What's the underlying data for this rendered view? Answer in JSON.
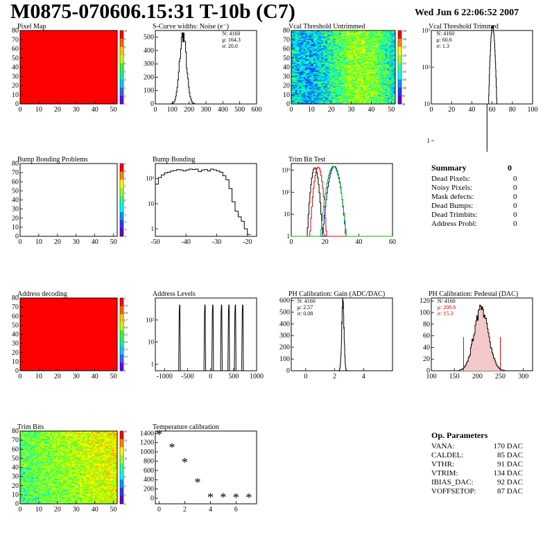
{
  "header": {
    "title": "M0875-070606.15:31 T-10b (C7)",
    "date": "Wed Jun  6 22:06:52 2007"
  },
  "summary": {
    "title": "Summary",
    "title_value": "0",
    "rows": [
      {
        "label": "Dead Pixels:",
        "value": "0"
      },
      {
        "label": "Noisy Pixels:",
        "value": "0"
      },
      {
        "label": "Mask defects:",
        "value": "0"
      },
      {
        "label": "Dead Bumps:",
        "value": "0"
      },
      {
        "label": "Dead Trimbits:",
        "value": "0"
      },
      {
        "label": "Address Probl:",
        "value": "0"
      }
    ]
  },
  "op_params": {
    "title": "Op. Parameters",
    "rows": [
      {
        "label": "VANA:",
        "value": "170 DAC"
      },
      {
        "label": "CALDEL:",
        "value": "85 DAC"
      },
      {
        "label": "VTHR:",
        "value": "91 DAC"
      },
      {
        "label": "VTRIM:",
        "value": "134 DAC"
      },
      {
        "label": "IBIAS_DAC:",
        "value": "92 DAC"
      },
      {
        "label": "VOFFSETOP:",
        "value": "87 DAC"
      }
    ]
  },
  "chart_data": [
    {
      "id": "pixel-map",
      "type": "heatmap",
      "title": "Pixel Map",
      "xlim": [
        0,
        52
      ],
      "ylim": [
        0,
        80
      ],
      "xticks": [
        "0",
        "10",
        "20",
        "30",
        "40",
        "50"
      ],
      "yticks": [
        "0",
        "10",
        "20",
        "30",
        "40",
        "50",
        "60",
        "70",
        "80"
      ],
      "fill": "uniform",
      "color": "#ff0000",
      "colorbar": {
        "colors": [
          "#ff0000",
          "#ff6600",
          "#ffcc00",
          "#ccff00",
          "#33ff33",
          "#00ff99",
          "#00ccff",
          "#3366ff",
          "#6600ff"
        ],
        "labels": [
          "10",
          "9",
          "8",
          "7",
          "6",
          "5",
          "4",
          "3",
          "2",
          "1"
        ]
      }
    },
    {
      "id": "scurve-widths",
      "type": "bar",
      "title": "S-Curve widths: Noise (e⁻)",
      "xlim": [
        0,
        600
      ],
      "ylim": [
        0,
        550
      ],
      "xticks": [
        "0",
        "100",
        "200",
        "300",
        "400",
        "500",
        "600"
      ],
      "yticks": [
        "0",
        "100",
        "200",
        "300",
        "400",
        "500"
      ],
      "stats": [
        {
          "text": "N: 4160"
        },
        {
          "text": "μ: 164.3"
        },
        {
          "text": "σ: 20.0"
        }
      ],
      "mean": 164.3,
      "sigma": 20.0,
      "peak": 520,
      "range": [
        90,
        260
      ]
    },
    {
      "id": "vcal-untrimmed",
      "type": "heatmap",
      "title": "Vcal Threshold Untrimmed",
      "xlim": [
        0,
        52
      ],
      "ylim": [
        0,
        80
      ],
      "xticks": [
        "0",
        "10",
        "20",
        "30",
        "40",
        "50"
      ],
      "yticks": [
        "0",
        "10",
        "20",
        "30",
        "40",
        "50",
        "60",
        "70",
        "80"
      ],
      "fill": "noise-blue-center",
      "colorbar": {
        "colors": [
          "#ff0000",
          "#ff8800",
          "#ffff00",
          "#99ff33",
          "#33ff99",
          "#00ffff",
          "#0099ff",
          "#3333ff",
          "#6600cc"
        ],
        "labels": [
          "135",
          "130",
          "125",
          "120",
          "115",
          "110",
          "105",
          "100",
          "95",
          "90"
        ]
      }
    },
    {
      "id": "vcal-trimmed",
      "type": "bar",
      "title": "Vcal Threshold Trimmed",
      "xlim": [
        0,
        100
      ],
      "log": true,
      "ylim_log": [
        1,
        3
      ],
      "xticks": [
        "0",
        "20",
        "40",
        "60",
        "80",
        "100"
      ],
      "yticks": [
        "1",
        "10",
        "10²",
        "10³"
      ],
      "stats": [
        {
          "text": "N: 4160"
        },
        {
          "text": "μ: 60.6"
        },
        {
          "text": "σ:  1.3"
        }
      ],
      "mean": 60.6,
      "sigma": 1.3,
      "peak": 1300,
      "range": [
        55,
        66
      ]
    },
    {
      "id": "bump-problems",
      "type": "heatmap",
      "title": "Bump Bonding Problems",
      "xlim": [
        0,
        52
      ],
      "ylim": [
        0,
        80
      ],
      "xticks": [
        "0",
        "10",
        "20",
        "30",
        "40",
        "50"
      ],
      "yticks": [
        "0",
        "10",
        "20",
        "30",
        "40",
        "50",
        "60",
        "70",
        "80"
      ],
      "fill": "empty",
      "colorbar": {
        "colors": [
          "#ff0000",
          "#ff8800",
          "#ffff00",
          "#99ff33",
          "#33ff99",
          "#00ffff",
          "#0099ff",
          "#3333ff",
          "#6600cc"
        ],
        "labels": [
          "5",
          "4",
          "3",
          "2",
          "1",
          "0",
          "-1",
          "-2",
          "-3",
          "-4",
          "-5"
        ]
      }
    },
    {
      "id": "bump-bonding",
      "type": "line",
      "title": "Bump Bonding",
      "xlim": [
        -50,
        -17
      ],
      "log": true,
      "ylim_log": [
        -0.3,
        2.6
      ],
      "xticks": [
        "-50",
        "-40",
        "-30",
        "-20"
      ],
      "yticks": [
        "1",
        "10",
        "10²"
      ],
      "x": [
        -50,
        -49,
        -48,
        -47,
        -46,
        -45,
        -44,
        -43,
        -42,
        -41,
        -40,
        -39,
        -38,
        -37,
        -36,
        -35,
        -34,
        -33,
        -32,
        -31,
        -30,
        -29,
        -28,
        -27,
        -26,
        -25,
        -24,
        -23,
        -22,
        -21,
        -20,
        -19
      ],
      "values": [
        60,
        110,
        140,
        170,
        180,
        200,
        210,
        230,
        220,
        200,
        220,
        240,
        230,
        240,
        190,
        220,
        230,
        200,
        240,
        220,
        200,
        180,
        130,
        90,
        40,
        12,
        5,
        3,
        2,
        1,
        0.6,
        0
      ]
    },
    {
      "id": "trim-bit-test",
      "type": "line",
      "title": "Trim Bit Test",
      "xlim": [
        0,
        60
      ],
      "log": true,
      "ylim_log": [
        0,
        3.3
      ],
      "xticks": [
        "0",
        "20",
        "40",
        "60"
      ],
      "yticks": [
        "1",
        "10",
        "10²",
        "10³"
      ],
      "series": [
        {
          "color": "#000000",
          "mean": 14,
          "sigma": 1.2,
          "peak": 1300
        },
        {
          "color": "#cc0000",
          "mean": 16,
          "sigma": 1.3,
          "peak": 1400
        },
        {
          "color": "#0000cc",
          "mean": 25.5,
          "sigma": 1.8,
          "peak": 1500
        },
        {
          "color": "#00bb00",
          "mean": 25,
          "sigma": 2.0,
          "peak": 1500
        }
      ]
    },
    {
      "id": "address-decoding",
      "type": "heatmap",
      "title": "Address decoding",
      "xlim": [
        0,
        52
      ],
      "ylim": [
        0,
        80
      ],
      "xticks": [
        "0",
        "10",
        "20",
        "30",
        "40",
        "50"
      ],
      "yticks": [
        "0",
        "10",
        "20",
        "30",
        "40",
        "50",
        "60",
        "70",
        "80"
      ],
      "fill": "uniform",
      "color": "#ff0000",
      "colorbar": {
        "colors": [
          "#ff0000",
          "#ff6600",
          "#ffcc00",
          "#ccff00",
          "#33ff33",
          "#00ff99",
          "#00ccff",
          "#3366ff",
          "#6600ff"
        ],
        "labels": [
          "1",
          "0.9",
          "0.8",
          "0.7",
          "0.6",
          "0.5",
          "0.4",
          "0.3",
          "0.2",
          "0.1",
          "0"
        ]
      }
    },
    {
      "id": "address-levels",
      "type": "line",
      "title": "Address Levels",
      "xlim": [
        -1200,
        1000
      ],
      "log": true,
      "ylim_log": [
        -0.3,
        3
      ],
      "xticks": [
        "-1000",
        "-500",
        "0",
        "500",
        "1000"
      ],
      "yticks": [
        "1",
        "10",
        "10²"
      ],
      "peaks": [
        -670,
        -120,
        50,
        240,
        400,
        540,
        700
      ],
      "peak_value": 500
    },
    {
      "id": "ph-gain",
      "type": "bar",
      "title": "PH Calibration: Gain (ADC/DAC)",
      "xlim": [
        -1,
        6
      ],
      "ylim": [
        0,
        620
      ],
      "xticks": [
        "0",
        "2",
        "4"
      ],
      "yticks": [
        "0",
        "100",
        "200",
        "300",
        "400",
        "500",
        "600"
      ],
      "stats": [
        {
          "text": "N: 4160"
        },
        {
          "text": "μ: 2.57"
        },
        {
          "text": "σ: 0.08"
        }
      ],
      "mean": 2.57,
      "sigma": 0.08,
      "peak": 580,
      "range": [
        2.3,
        2.85
      ]
    },
    {
      "id": "ph-pedestal",
      "type": "bar",
      "title": "PH Calibration: Pedestal (DAC)",
      "xlim": [
        100,
        320
      ],
      "ylim": [
        0,
        125
      ],
      "xticks": [
        "100",
        "150",
        "200",
        "250",
        "300"
      ],
      "yticks": [
        "0",
        "20",
        "40",
        "60",
        "80",
        "100",
        "120"
      ],
      "stats": [
        {
          "text": "N: 4160"
        },
        {
          "text": "μ: 208.6",
          "color": "#cc0000"
        },
        {
          "text": "σ: 15.3",
          "color": "#cc0000"
        }
      ],
      "mean": 208.6,
      "sigma": 15.3,
      "peak": 110,
      "range": [
        160,
        260
      ],
      "cut_lines": [
        170,
        250
      ]
    },
    {
      "id": "trim-bits",
      "type": "heatmap",
      "title": "Trim Bits",
      "xlim": [
        0,
        52
      ],
      "ylim": [
        0,
        80
      ],
      "xticks": [
        "0",
        "10",
        "20",
        "30",
        "40",
        "50"
      ],
      "yticks": [
        "0",
        "10",
        "20",
        "30",
        "40",
        "50",
        "60",
        "70",
        "80"
      ],
      "fill": "noise-gradient",
      "colorbar": {
        "colors": [
          "#ff0000",
          "#ff8800",
          "#ffff00",
          "#99ff33",
          "#33ff99",
          "#00ffff",
          "#0099ff",
          "#3333ff",
          "#6600cc"
        ],
        "labels": [
          "16",
          "14",
          "12",
          "10",
          "8",
          "6",
          "4",
          "2",
          "0"
        ]
      }
    },
    {
      "id": "temperature-calibration",
      "type": "scatter",
      "title": "Temperature calibration",
      "xlim": [
        -0.3,
        7.6
      ],
      "ylim": [
        -120,
        1450
      ],
      "xticks": [
        "0",
        "2",
        "4",
        "6"
      ],
      "yticks": [
        "0",
        "200",
        "400",
        "600",
        "800",
        "1000",
        "1200",
        "1400"
      ],
      "x": [
        0,
        1,
        2,
        3,
        4,
        5,
        6,
        7
      ],
      "values": [
        1360,
        1080,
        760,
        330,
        5,
        5,
        0,
        0
      ]
    }
  ]
}
